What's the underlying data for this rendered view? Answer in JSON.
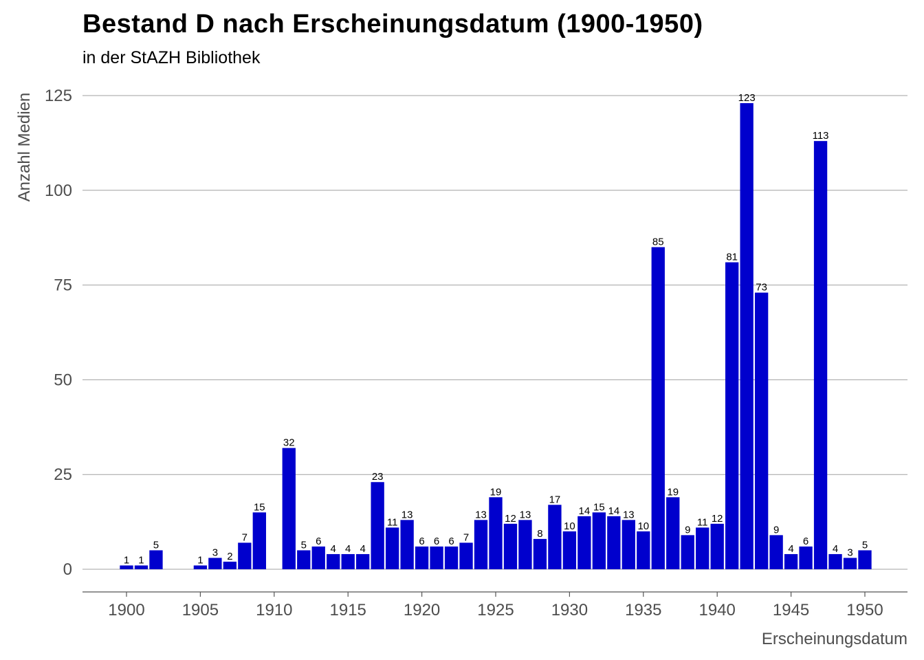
{
  "title": "Bestand D nach Erscheinungsdatum (1900-1950)",
  "subtitle": "in der StAZH Bibliothek",
  "colors": {
    "bar": "#0000CD",
    "grid": "#a0a0a0",
    "axis_text": "#4d4d4d"
  },
  "chart_data": {
    "type": "bar",
    "title": "Bestand D nach Erscheinungsdatum (1900-1950)",
    "subtitle": "in der StAZH Bibliothek",
    "xlabel": "Erscheinungsdatum",
    "ylabel": "Anzahl Medien",
    "xlim": [
      1898.5,
      1951.5
    ],
    "ylim": [
      0,
      125
    ],
    "x_ticks": [
      "1900",
      "1905",
      "1910",
      "1915",
      "1920",
      "1925",
      "1930",
      "1935",
      "1940",
      "1945",
      "1950"
    ],
    "y_ticks": [
      "0",
      "25",
      "50",
      "75",
      "100",
      "125"
    ],
    "grid": "horizontal",
    "legend": "none",
    "x": [
      1900,
      1901,
      1902,
      1905,
      1906,
      1907,
      1908,
      1909,
      1911,
      1912,
      1913,
      1914,
      1915,
      1916,
      1917,
      1918,
      1919,
      1920,
      1921,
      1922,
      1923,
      1924,
      1925,
      1926,
      1927,
      1928,
      1929,
      1930,
      1931,
      1932,
      1933,
      1934,
      1935,
      1936,
      1937,
      1938,
      1939,
      1940,
      1941,
      1942,
      1943,
      1944,
      1945,
      1946,
      1947,
      1948,
      1949,
      1950
    ],
    "values": [
      1,
      1,
      5,
      1,
      3,
      2,
      7,
      15,
      32,
      5,
      6,
      4,
      4,
      4,
      23,
      11,
      13,
      6,
      6,
      6,
      7,
      13,
      19,
      12,
      13,
      8,
      17,
      10,
      14,
      15,
      14,
      13,
      10,
      85,
      19,
      9,
      11,
      12,
      81,
      123,
      73,
      9,
      4,
      6,
      113,
      4,
      3,
      5
    ]
  }
}
